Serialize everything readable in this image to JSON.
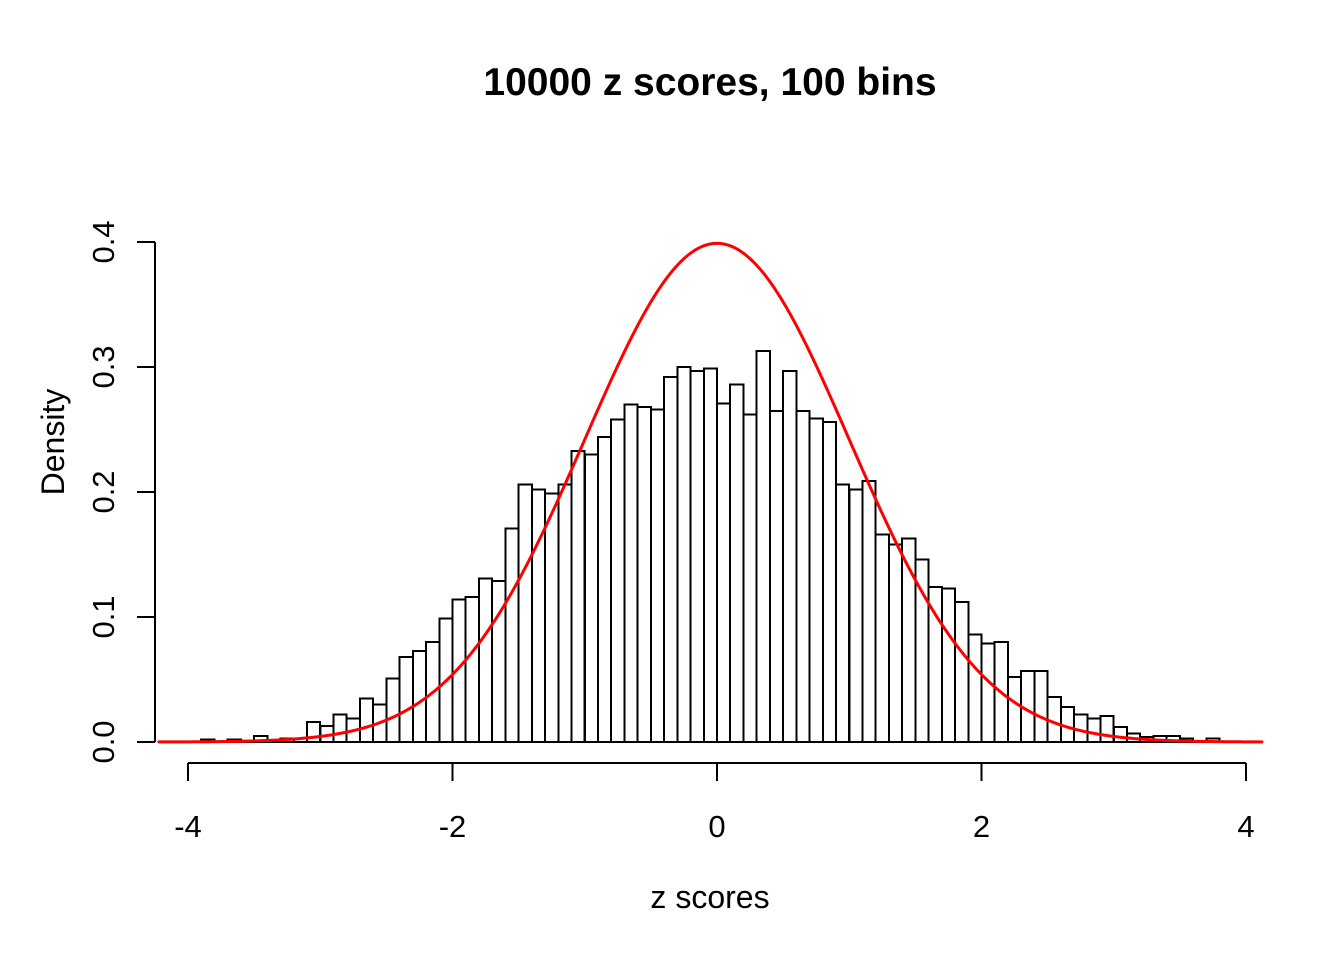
{
  "figure": {
    "title": "10000 z scores, 100 bins",
    "x_axis_label": "z scores",
    "y_axis_label": "Density"
  },
  "colors": {
    "background": "#FFFFFF",
    "curve": "#FF0000",
    "bar_fill": "#FFFFFF",
    "bar_stroke": "#000000",
    "axis": "#000000",
    "text": "#000000"
  },
  "chart_data": {
    "type": "bar",
    "subtype": "histogram-with-density-curve",
    "title": "10000 z scores, 100 bins",
    "xlabel": "z scores",
    "ylabel": "Density",
    "xlim": [
      -4,
      4
    ],
    "ylim": [
      0,
      0.4
    ],
    "grid": false,
    "legend": false,
    "x_ticks": [
      -4,
      -2,
      0,
      2,
      4
    ],
    "x_tick_labels": [
      "-4",
      "-2",
      "0",
      "2",
      "4"
    ],
    "y_ticks": [
      0.0,
      0.1,
      0.2,
      0.3,
      0.4
    ],
    "y_tick_labels": [
      "0.0",
      "0.1",
      "0.2",
      "0.3",
      "0.4"
    ],
    "bin_start": -3.9,
    "bin_width": 0.1,
    "densities": [
      0.002,
      0,
      0.002,
      0,
      0.005,
      0,
      0.003,
      0,
      0.016,
      0.013,
      0.022,
      0.019,
      0.035,
      0.03,
      0.051,
      0.068,
      0.073,
      0.08,
      0.099,
      0.114,
      0.116,
      0.131,
      0.129,
      0.171,
      0.206,
      0.202,
      0.199,
      0.206,
      0.233,
      0.23,
      0.244,
      0.258,
      0.27,
      0.268,
      0.266,
      0.292,
      0.3,
      0.297,
      0.299,
      0.271,
      0.286,
      0.262,
      0.313,
      0.265,
      0.297,
      0.265,
      0.259,
      0.256,
      0.206,
      0.202,
      0.209,
      0.166,
      0.158,
      0.163,
      0.146,
      0.124,
      0.123,
      0.112,
      0.086,
      0.079,
      0.08,
      0.052,
      0.057,
      0.057,
      0.036,
      0.028,
      0.022,
      0.019,
      0.021,
      0.012,
      0.007,
      0.004,
      0.005,
      0.005,
      0.003,
      0,
      0.003,
      0
    ],
    "curve": {
      "name": "standard-normal-density",
      "mean": 0,
      "sd": 1,
      "range": [
        -4.22,
        4.12
      ],
      "color": "#FF0000"
    }
  }
}
